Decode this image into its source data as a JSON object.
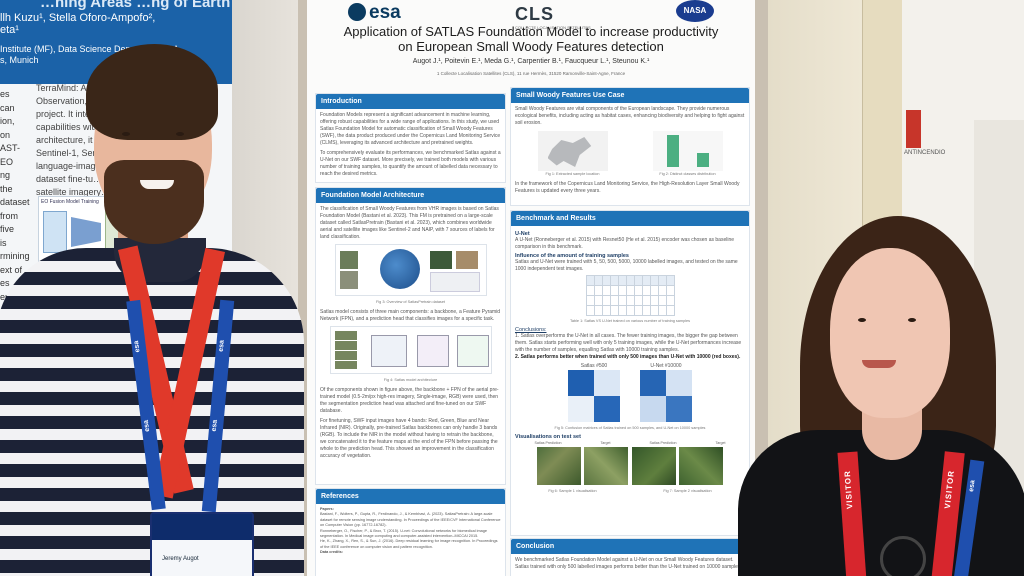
{
  "left_poster": {
    "title_fragment": "…ning Areas …ng of Earth",
    "authors_fragment": "llh Kuzu¹, Stella Oforo-Ampofo²,",
    "authors_fragment_2": "eta¹",
    "affiliation_fragment_1": "Institute (MF), Data Science Department (DA",
    "affiliation_fragment_2": "s, Munich",
    "left_column_fragments": [
      "es",
      "can",
      "ion,",
      "on",
      "AST-EO",
      "ng",
      "the",
      "dataset",
      "from five",
      "is",
      "rmining",
      "ext of",
      "es",
      "en"
    ],
    "right_column_text": "TerraMind: A…\nObservation, ca…\nproject. It integ…\ncapabilities with …\narchitecture, it …\nSentinel-1, Sen…\nlanguage-image …\ndataset fine-tu…\nsatellite imagery…",
    "diagram_caption": "EO Fusion Model Training"
  },
  "main_poster": {
    "logos": {
      "esa": "esa",
      "cls": "CLS",
      "cls_sub": "COLLECTE LOCALISATION SATELLITES",
      "nasa": "NASA"
    },
    "title_line1": "Application of SATLAS Foundation Model to increase productivity",
    "title_line2": "on European Small Woody Features detection",
    "authors": "Augot J.¹, Poitevin E.¹, Meda G.¹, Carpentier B.¹, Faucqueur L.¹, Steunou K.¹",
    "affiliation": "1 Collecte Localisation Satellites (CLS), 11 rue Hermès, 31520 Ramonville-Saint-Agne, France",
    "sections": {
      "introduction": {
        "heading": "Introduction",
        "p1": "Foundation Models represent a significant advancement in machine learning, offering robust capabilities for a wide range of applications. In this study, we used Satlas Foundation Model for automatic classification of Small Woody Features (SWF), the data product produced under the Copernicus Land Monitoring Service (CLMS), leveraging its advanced architecture and pretrained weights.",
        "p2": "To comprehensively evaluate its performances, we benchmarked Satlas against a U-Net on our SWF dataset. More precisely, we trained both models with various number of training samples, to quantify the amount of labelled data necessary to reach the desired metrics."
      },
      "use_case": {
        "heading": "Small Woody Features Use Case",
        "p1": "Small Woody Features are vital components of the European landscape. They provide numerous ecological benefits, including acting as habitat cases, enhancing biodiversity and helping to fight against soil erosion.",
        "fig1": "Fig 1: Extracted sample location",
        "fig2": "Fig 2: Distinct classes distribution",
        "p2": "In the framework of the Copernicus Land Monitoring Service, the High-Resolution Layer Small Woody Features is updated every three years."
      },
      "architecture": {
        "heading": "Foundation Model Architecture",
        "p1": "The classification of Small Woody Features from VHR images is based on Satlas Foundation Model (Bastani et al. 2023). This FM is pretrained on a large-scale dataset called SatlasPretrain (Bastani et al. 2023), which combines worldwide aerial and satellite images like Sentinel-2 and NAIP, with 7 sources of labels for land classification.",
        "fig3": "Fig 3: Overview of SatlasPretrain dataset",
        "p2": "Satlas model consists of three main components: a backbone, a Feature Pyramid Network (FPN), and a prediction head that classifies images for a specific task.",
        "fig4": "Fig 4: Satlas model architecture",
        "p3": "Of the components shown in figure above, the backbone + FPN of the aerial pre-trained model (0.5-2m/px high-res imagery, Single-image, RGB) were used, then the segmentation prediction head was attached and fine-tuned on our SWF database.",
        "p4": "For finetuning, SWF input images have 4 bands: Red, Green, Blue and Near Infrared (NIR). Originally, pre-trained Satlas backbones can only handle 3 bands (RGB). To include the NIR in the model without having to retrain the backbone, we concatenated it to the feature maps at the end of the FPN before passing the whole to the prediction head. This showed an improvement in the classification accuracy of vegetation."
      },
      "references": {
        "heading": "References",
        "label": "Papers:",
        "r1": "Bastani, F., Wolters, P., Gupta, R., Ferdinando, J., & Kembhavi, A. (2023). SatlasPretrain: A large-scale dataset for remote sensing image understanding. In Proceedings of the IEEE/CVF International Conference on Computer Vision (pp. 16772-16782).",
        "r2": "Ronneberger, O., Fischer, P., & Brox, T. (2015). U-net: Convolutional networks for biomedical image segmentation. In Medical image computing and computer-assisted intervention–MICCAI 2015.",
        "r3": "He, K., Zhang, X., Ren, S., & Sun, J. (2016). Deep residual learning for image recognition. In Proceedings of the IEEE conference on computer vision and pattern recognition.",
        "label2": "Data credits:"
      },
      "benchmark": {
        "heading": "Benchmark and Results",
        "unet_label": "U-Net",
        "unet_text": "A U-Net (Ronneberger et al. 2015) with Resnet50 (He et al. 2015) encoder was chosen as baseline comparison in this benchmark.",
        "influence_label": "Influence of the amount of training samples",
        "influence_text": "Satlas and U-Net were trained with 5, 50, 500, 5000, 10000 labelled images, and tested on the same 1000 independent test images.",
        "table_caption": "Table 1: Satlas VS U-Net trained on various number of training samples",
        "conclusions_label": "Conclusions:",
        "c1": "Satlas overperforms the U-Net in all cases. The fewer training images, the bigger the gap between them. Satlas starts performing well with only 5 training images, while the U-Net performances increase with the number of samples, equalling Satlas with 10000 training samples.",
        "c2": "Satlas performs better when trained with only 500 images than U-Net with 10000 (red boxes).",
        "cm1_title": "Satlas #500",
        "cm2_title": "U-Net #10000",
        "fig5": "Fig 5: Confusion matrices of Satlas trained on 500 samples, and U-Net on 10000 samples",
        "vis_label": "Visualisations on test set",
        "vis_headers": [
          "Satlas Prediction",
          "Target",
          "Satlas Prediction",
          "Target"
        ],
        "fig6": "Fig 6: Sample 1 visualisation",
        "fig7": "Fig 7: Sample 2 visualisation"
      },
      "conclusion": {
        "heading": "Conclusion",
        "text": "We benchmarked Satlas Foundation Model against a U-Net on our Small Woody Features dataset. Satlas trained with only 500 labelled images performs better than the U-Net trained on 10000 samples."
      }
    }
  },
  "lanyards": {
    "esa_text": "esa",
    "visitor_text": "VISITOR"
  },
  "badge_name": "Jeremy Augot",
  "sign_text": "ANTINCENDIO",
  "colors": {
    "poster_blue": "#1f73b7",
    "lanyard_red": "#e0392a",
    "lanyard_blue": "#1f4fae",
    "visitor_red": "#d7262d"
  }
}
